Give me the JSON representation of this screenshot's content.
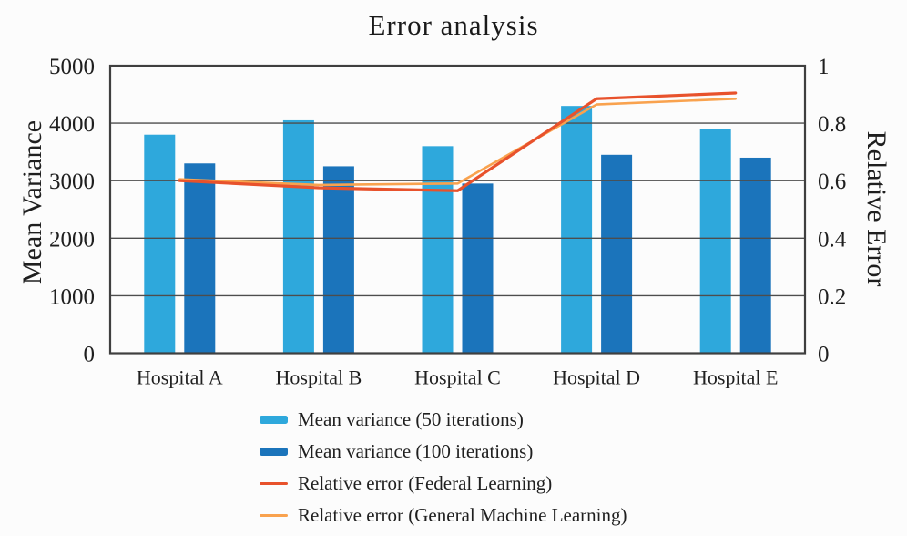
{
  "chart_data": {
    "type": "combo-bar-line",
    "title": "Error analysis",
    "categories": [
      "Hospital A",
      "Hospital B",
      "Hospital C",
      "Hospital D",
      "Hospital E"
    ],
    "bar_series": [
      {
        "name": "Mean variance (50 iterations)",
        "color": "#2EA8DC",
        "axis": "left",
        "values": [
          3800,
          4050,
          3600,
          4300,
          3900
        ]
      },
      {
        "name": "Mean variance (100 iterations)",
        "color": "#1B74BB",
        "axis": "left",
        "values": [
          3300,
          3250,
          2950,
          3450,
          3400
        ]
      }
    ],
    "line_series": [
      {
        "name": "Relative error (Federal Learning)",
        "color": "#E8522C",
        "axis": "right",
        "values": [
          0.6,
          0.575,
          0.565,
          0.885,
          0.905
        ]
      },
      {
        "name": "Relative error (General Machine Learning)",
        "color": "#F9A24E",
        "axis": "right",
        "values": [
          0.605,
          0.585,
          0.59,
          0.865,
          0.885
        ]
      }
    ],
    "left_axis": {
      "label": "Mean Variance",
      "min": 0,
      "max": 5000,
      "ticks": [
        5000,
        4000,
        3000,
        2000,
        1000,
        0
      ]
    },
    "right_axis": {
      "label": "Relative Error",
      "min": 0,
      "max": 1,
      "ticks": [
        1,
        0.8,
        0.6,
        0.4,
        0.2,
        0
      ]
    },
    "grid": true,
    "legend_position": "bottom-left"
  },
  "colors": {
    "grid": "#4d4d4d",
    "border": "#3f3f3f",
    "text": "#1f1f1f",
    "background": "#fcfcfc"
  }
}
